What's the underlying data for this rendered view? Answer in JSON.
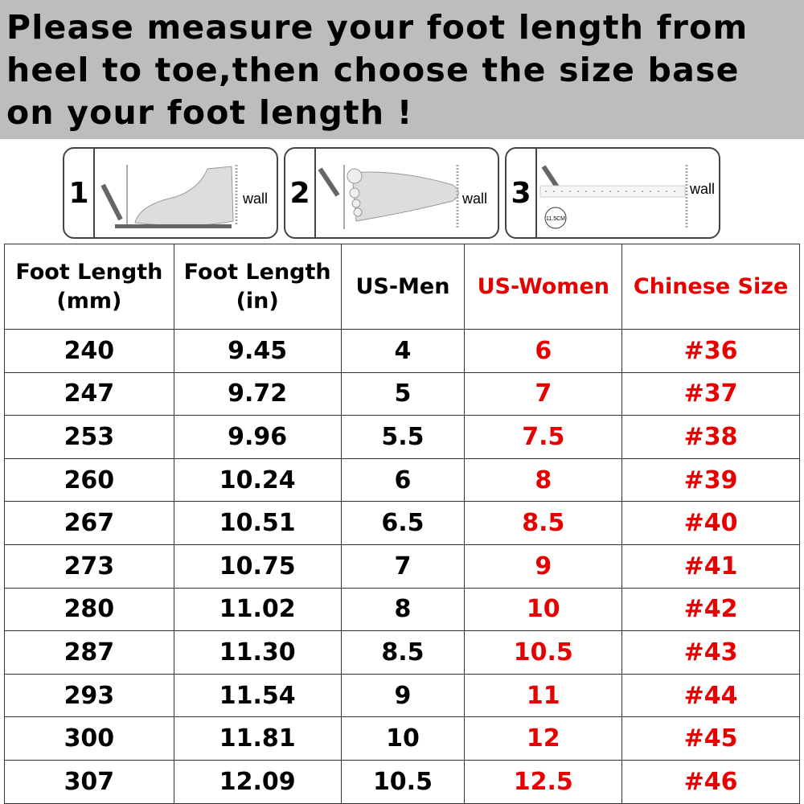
{
  "banner": {
    "lines": [
      "Please measure your foot length from",
      "heel to toe,then choose the size base",
      "on your foot length !"
    ]
  },
  "steps": [
    {
      "number": "1",
      "label": "wall"
    },
    {
      "number": "2",
      "label": "wall"
    },
    {
      "number": "3",
      "label": "wall",
      "ruler_text": "11.5CM"
    }
  ],
  "table": {
    "headers": [
      "Foot Length (mm)",
      "Foot Length (in)",
      "US-Men",
      "US-Women",
      "Chinese Size"
    ],
    "red_columns": [
      3,
      4
    ],
    "red_color": "#e60000",
    "rows": [
      [
        "240",
        "9.45",
        "4",
        "6",
        "#36"
      ],
      [
        "247",
        "9.72",
        "5",
        "7",
        "#37"
      ],
      [
        "253",
        "9.96",
        "5.5",
        "7.5",
        "#38"
      ],
      [
        "260",
        "10.24",
        "6",
        "8",
        "#39"
      ],
      [
        "267",
        "10.51",
        "6.5",
        "8.5",
        "#40"
      ],
      [
        "273",
        "10.75",
        "7",
        "9",
        "#41"
      ],
      [
        "280",
        "11.02",
        "8",
        "10",
        "#42"
      ],
      [
        "287",
        "11.30",
        "8.5",
        "10.5",
        "#43"
      ],
      [
        "293",
        "11.54",
        "9",
        "11",
        "#44"
      ],
      [
        "300",
        "11.81",
        "10",
        "12",
        "#45"
      ],
      [
        "307",
        "12.09",
        "10.5",
        "12.5",
        "#46"
      ]
    ]
  }
}
